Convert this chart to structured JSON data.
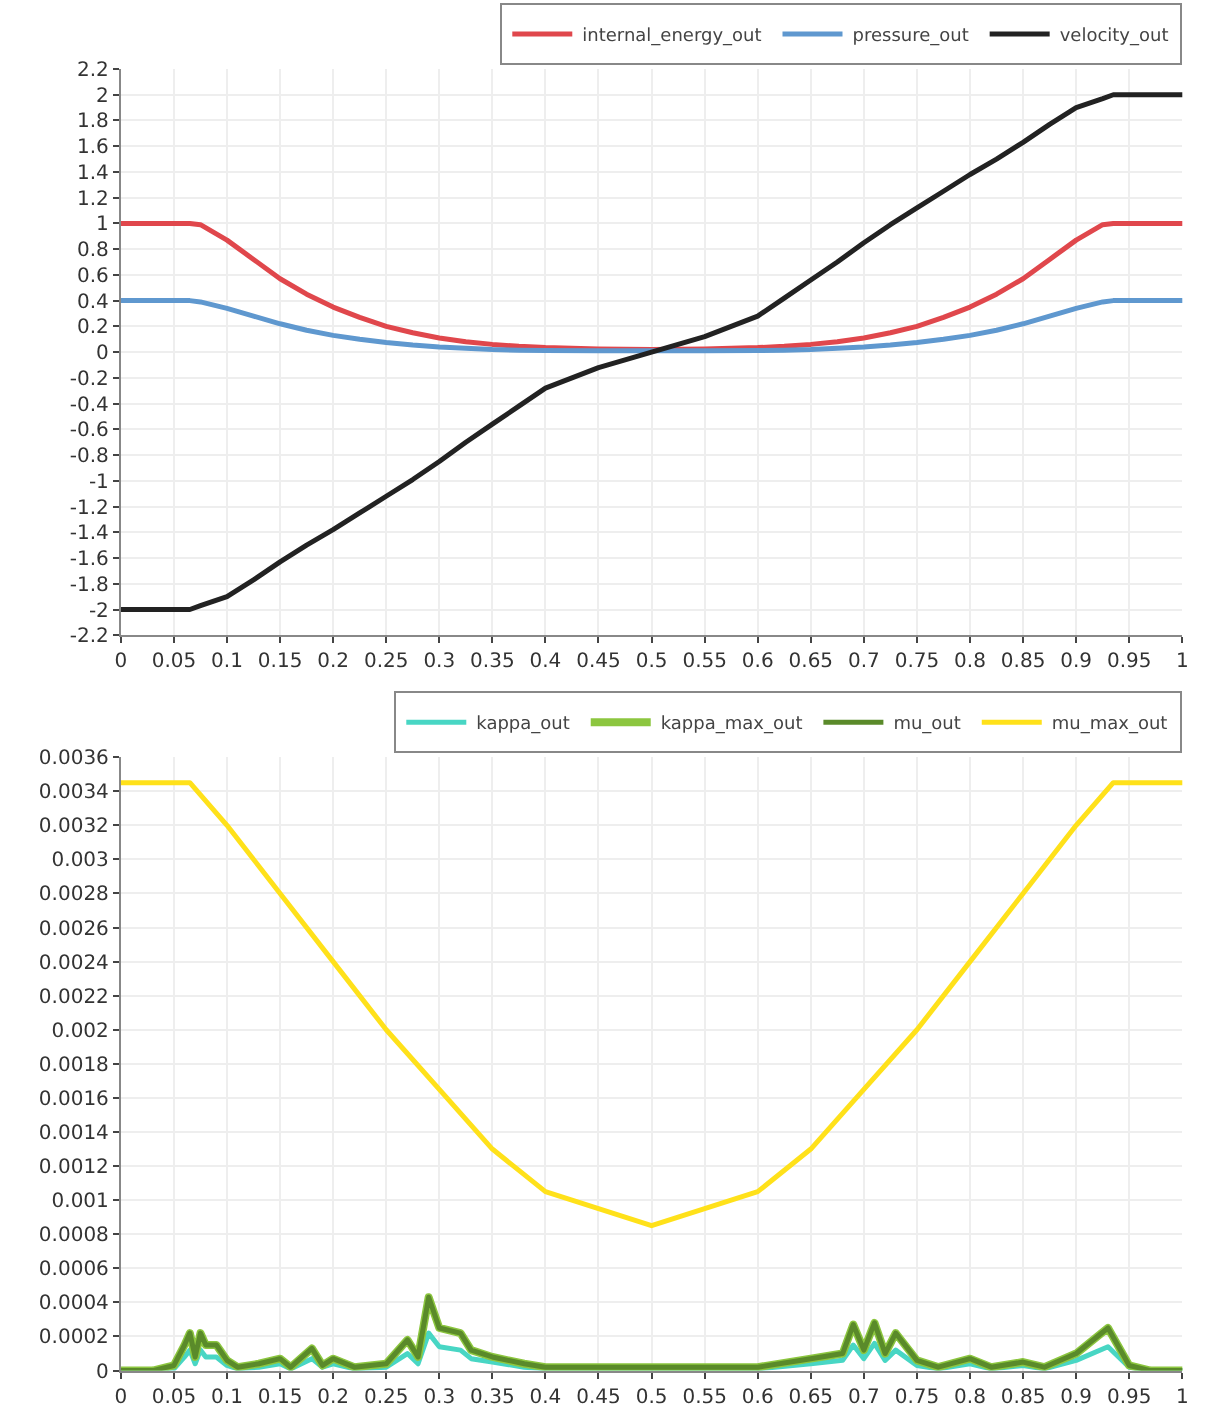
{
  "chart_data": [
    {
      "type": "line",
      "xlim": [
        0,
        1
      ],
      "ylim": [
        -2.2,
        2.2
      ],
      "xticks": [
        0,
        0.05,
        0.1,
        0.15,
        0.2,
        0.25,
        0.3,
        0.35,
        0.4,
        0.45,
        0.5,
        0.55,
        0.6,
        0.65,
        0.7,
        0.75,
        0.8,
        0.85,
        0.9,
        0.95,
        1
      ],
      "yticks": [
        -2.2,
        -2,
        -1.8,
        -1.6,
        -1.4,
        -1.2,
        -1,
        -0.8,
        -0.6,
        -0.4,
        -0.2,
        0,
        0.2,
        0.4,
        0.6,
        0.8,
        1,
        1.2,
        1.4,
        1.6,
        1.8,
        2,
        2.2
      ],
      "grid": true,
      "legend": "top right",
      "x": [
        0,
        0.065,
        0.075,
        0.1,
        0.125,
        0.15,
        0.175,
        0.2,
        0.225,
        0.25,
        0.275,
        0.3,
        0.325,
        0.35,
        0.375,
        0.4,
        0.45,
        0.5,
        0.55,
        0.6,
        0.625,
        0.65,
        0.675,
        0.7,
        0.725,
        0.75,
        0.775,
        0.8,
        0.825,
        0.85,
        0.875,
        0.9,
        0.925,
        0.935,
        1
      ],
      "series": [
        {
          "name": "internal_energy_out",
          "color": "#e0474c",
          "values": [
            1,
            1,
            0.99,
            0.87,
            0.72,
            0.57,
            0.45,
            0.35,
            0.27,
            0.2,
            0.15,
            0.11,
            0.08,
            0.06,
            0.045,
            0.035,
            0.025,
            0.02,
            0.025,
            0.035,
            0.045,
            0.06,
            0.08,
            0.11,
            0.15,
            0.2,
            0.27,
            0.35,
            0.45,
            0.57,
            0.72,
            0.87,
            0.99,
            1,
            1
          ]
        },
        {
          "name": "pressure_out",
          "color": "#5f98cf",
          "values": [
            0.4,
            0.4,
            0.39,
            0.34,
            0.28,
            0.22,
            0.17,
            0.13,
            0.1,
            0.075,
            0.055,
            0.04,
            0.03,
            0.02,
            0.015,
            0.012,
            0.01,
            0.01,
            0.01,
            0.012,
            0.015,
            0.02,
            0.03,
            0.04,
            0.055,
            0.075,
            0.1,
            0.13,
            0.17,
            0.22,
            0.28,
            0.34,
            0.39,
            0.4,
            0.4
          ]
        },
        {
          "name": "velocity_out",
          "color": "#222222",
          "values": [
            -2,
            -2,
            -1.97,
            -1.9,
            -1.77,
            -1.63,
            -1.5,
            -1.38,
            -1.25,
            -1.12,
            -0.99,
            -0.85,
            -0.7,
            -0.56,
            -0.42,
            -0.28,
            -0.12,
            0,
            0.12,
            0.28,
            0.42,
            0.56,
            0.7,
            0.85,
            0.99,
            1.12,
            1.25,
            1.38,
            1.5,
            1.63,
            1.77,
            1.9,
            1.97,
            2,
            2
          ]
        }
      ]
    },
    {
      "type": "line",
      "xlim": [
        0,
        1
      ],
      "ylim": [
        0,
        0.0036
      ],
      "xticks": [
        0,
        0.05,
        0.1,
        0.15,
        0.2,
        0.25,
        0.3,
        0.35,
        0.4,
        0.45,
        0.5,
        0.55,
        0.6,
        0.65,
        0.7,
        0.75,
        0.8,
        0.85,
        0.9,
        0.95,
        1
      ],
      "yticks": [
        0,
        0.0002,
        0.0004,
        0.0006,
        0.0008,
        0.001,
        0.0012,
        0.0014,
        0.0016,
        0.0018,
        0.002,
        0.0022,
        0.0024,
        0.0026,
        0.0028,
        0.003,
        0.0032,
        0.0034,
        0.0036
      ],
      "grid": true,
      "legend": "top right",
      "x": [
        0,
        0.03,
        0.05,
        0.06,
        0.065,
        0.07,
        0.075,
        0.08,
        0.09,
        0.1,
        0.11,
        0.13,
        0.15,
        0.16,
        0.18,
        0.19,
        0.2,
        0.22,
        0.25,
        0.27,
        0.28,
        0.29,
        0.3,
        0.32,
        0.33,
        0.35,
        0.38,
        0.4,
        0.45,
        0.5,
        0.55,
        0.6,
        0.65,
        0.68,
        0.69,
        0.7,
        0.71,
        0.72,
        0.73,
        0.75,
        0.77,
        0.8,
        0.82,
        0.85,
        0.87,
        0.9,
        0.93,
        0.95,
        0.97,
        1
      ],
      "series": [
        {
          "name": "kappa_out",
          "color": "#48d6c4",
          "values": [
            0,
            0,
            1e-05,
            8e-05,
            0.00012,
            4e-05,
            0.00012,
            8e-05,
            8e-05,
            3e-05,
            1e-05,
            2e-05,
            4e-05,
            1e-05,
            7e-05,
            2e-05,
            4e-05,
            1e-05,
            2e-05,
            0.0001,
            4e-05,
            0.00022,
            0.00014,
            0.00012,
            7e-05,
            5e-05,
            2e-05,
            1e-05,
            1e-05,
            1e-05,
            1e-05,
            1e-05,
            4e-05,
            6e-05,
            0.00015,
            7e-05,
            0.00016,
            6e-05,
            0.00012,
            3e-05,
            1e-05,
            4e-05,
            1e-05,
            3e-05,
            1e-05,
            6e-05,
            0.00014,
            2e-05,
            0,
            0
          ]
        },
        {
          "name": "kappa_max_out",
          "color": "#8cc63f",
          "values": [
            0,
            0,
            3e-05,
            0.00015,
            0.00022,
            8e-05,
            0.00022,
            0.00015,
            0.00015,
            6e-05,
            2e-05,
            4e-05,
            7e-05,
            2e-05,
            0.00013,
            3e-05,
            7e-05,
            2e-05,
            4e-05,
            0.00018,
            8e-05,
            0.00043,
            0.00025,
            0.00022,
            0.00012,
            8e-05,
            4e-05,
            2e-05,
            2e-05,
            2e-05,
            2e-05,
            2e-05,
            7e-05,
            0.0001,
            0.00027,
            0.00012,
            0.00028,
            0.0001,
            0.00022,
            6e-05,
            2e-05,
            7e-05,
            2e-05,
            5e-05,
            2e-05,
            0.0001,
            0.00025,
            3e-05,
            0,
            0
          ]
        },
        {
          "name": "mu_out",
          "color": "#5a8a2a",
          "values": [
            0,
            0,
            3e-05,
            0.00015,
            0.00022,
            8e-05,
            0.00022,
            0.00015,
            0.00015,
            6e-05,
            2e-05,
            4e-05,
            7e-05,
            2e-05,
            0.00013,
            3e-05,
            7e-05,
            2e-05,
            4e-05,
            0.00018,
            8e-05,
            0.00043,
            0.00025,
            0.00022,
            0.00012,
            8e-05,
            4e-05,
            2e-05,
            2e-05,
            2e-05,
            2e-05,
            2e-05,
            7e-05,
            0.0001,
            0.00027,
            0.00012,
            0.00028,
            0.0001,
            0.00022,
            6e-05,
            2e-05,
            7e-05,
            2e-05,
            5e-05,
            2e-05,
            0.0001,
            0.00025,
            3e-05,
            0,
            0
          ]
        },
        {
          "name": "mu_max_out",
          "color": "#ffe11a",
          "x": [
            0,
            0.065,
            0.1,
            0.15,
            0.2,
            0.25,
            0.3,
            0.35,
            0.4,
            0.45,
            0.5,
            0.55,
            0.6,
            0.65,
            0.7,
            0.75,
            0.8,
            0.85,
            0.9,
            0.935,
            1
          ],
          "values": [
            0.00345,
            0.00345,
            0.0032,
            0.0028,
            0.0024,
            0.002,
            0.00165,
            0.0013,
            0.00105,
            0.00095,
            0.00085,
            0.00095,
            0.00105,
            0.0013,
            0.00165,
            0.002,
            0.0024,
            0.0028,
            0.0032,
            0.00345,
            0.00345
          ]
        }
      ]
    }
  ]
}
